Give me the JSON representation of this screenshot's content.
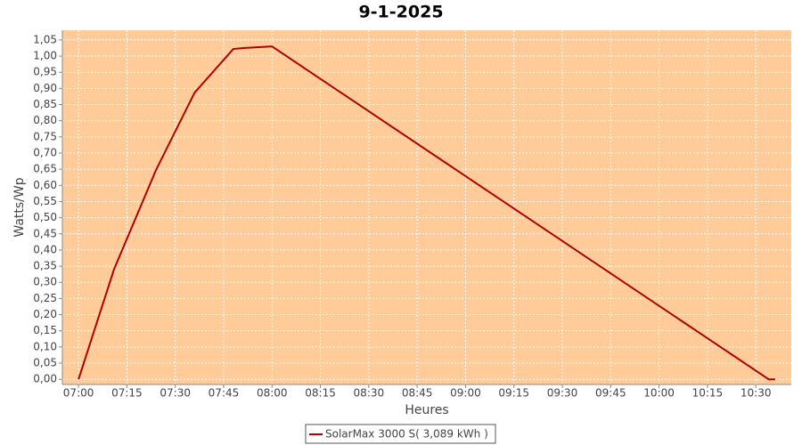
{
  "chart_data": {
    "type": "line",
    "title": "9-1-2025",
    "x_label": "Heures",
    "y_label": "Watts/Wp",
    "x": [
      "07:00",
      "07:11",
      "07:24",
      "07:36",
      "07:48",
      "07:51",
      "08:00",
      "10:34",
      "10:36"
    ],
    "series": [
      {
        "name": "SolarMax 3000 S( 3,089 kWh )",
        "color": "#b00000",
        "values": [
          0,
          0.34,
          0.647,
          0.887,
          1.022,
          1.025,
          1.03,
          0,
          0
        ]
      }
    ],
    "xlim": [
      "06:55",
      "10:41"
    ],
    "xticks": [
      "07:00",
      "07:15",
      "07:30",
      "07:45",
      "08:00",
      "08:15",
      "08:30",
      "08:45",
      "09:00",
      "09:15",
      "09:30",
      "09:45",
      "10:00",
      "10:15",
      "10:30"
    ],
    "ylim": [
      -0.016,
      1.08
    ],
    "yticks": [
      {
        "value": 0,
        "label": "0,00"
      },
      {
        "value": 0.05,
        "label": "0,05"
      },
      {
        "value": 0.1,
        "label": "0,10"
      },
      {
        "value": 0.15,
        "label": "0,15"
      },
      {
        "value": 0.2,
        "label": "0,20"
      },
      {
        "value": 0.25,
        "label": "0,25"
      },
      {
        "value": 0.3,
        "label": "0,30"
      },
      {
        "value": 0.35,
        "label": "0,35"
      },
      {
        "value": 0.4,
        "label": "0,40"
      },
      {
        "value": 0.45,
        "label": "0,45"
      },
      {
        "value": 0.5,
        "label": "0,50"
      },
      {
        "value": 0.55,
        "label": "0,55"
      },
      {
        "value": 0.6,
        "label": "0,60"
      },
      {
        "value": 0.65,
        "label": "0,65"
      },
      {
        "value": 0.7,
        "label": "0,70"
      },
      {
        "value": 0.75,
        "label": "0,75"
      },
      {
        "value": 0.8,
        "label": "0,80"
      },
      {
        "value": 0.85,
        "label": "0,85"
      },
      {
        "value": 0.9,
        "label": "0,90"
      },
      {
        "value": 0.95,
        "label": "0,95"
      },
      {
        "value": 1.0,
        "label": "1,00"
      },
      {
        "value": 1.05,
        "label": "1,05"
      }
    ],
    "grid": true,
    "background": "#ffcc99",
    "legend": "bottom"
  }
}
